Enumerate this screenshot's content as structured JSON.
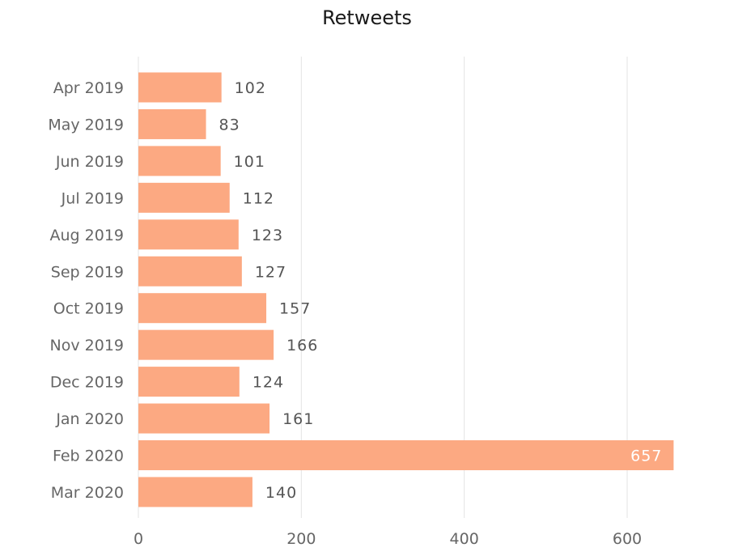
{
  "chart_data": {
    "type": "bar",
    "orientation": "horizontal",
    "title": "Retweets",
    "xlabel": "",
    "ylabel": "",
    "categories": [
      "Apr 2019",
      "May 2019",
      "Jun 2019",
      "Jul 2019",
      "Aug 2019",
      "Sep 2019",
      "Oct 2019",
      "Nov 2019",
      "Dec 2019",
      "Jan 2020",
      "Feb 2020",
      "Mar 2020"
    ],
    "values": [
      102,
      83,
      101,
      112,
      123,
      127,
      157,
      166,
      124,
      161,
      657,
      140
    ],
    "xlim": [
      0,
      680
    ],
    "xticks": [
      0,
      200,
      400,
      600
    ],
    "grid": true,
    "bar_color": "#FCA982",
    "data_labels": true
  }
}
